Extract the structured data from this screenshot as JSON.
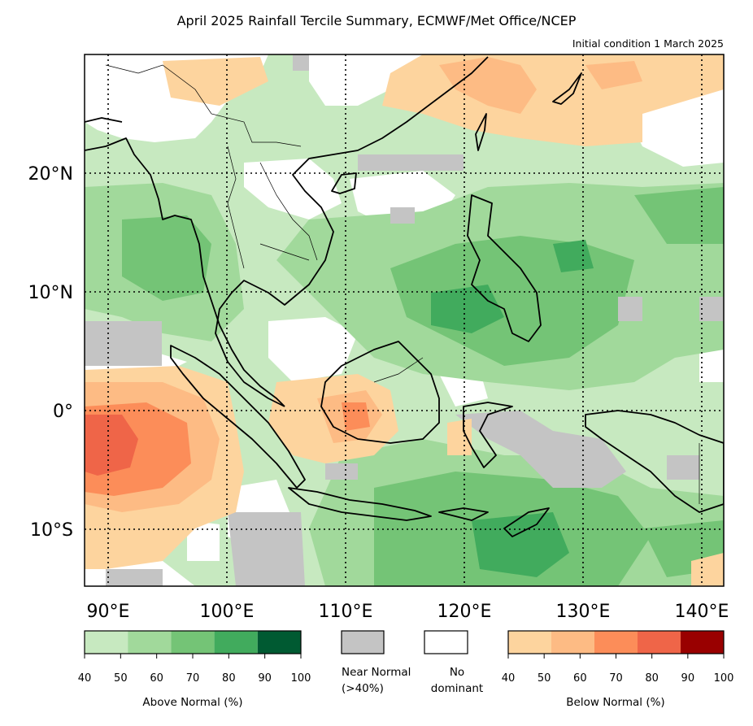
{
  "title": "April 2025 Rainfall Tercile Summary, ECMWF/Met Office/NCEP",
  "subtitle": "Initial condition 1 March 2025",
  "map": {
    "lat_labels": [
      "20°N",
      "10°N",
      "0°",
      "10°S"
    ],
    "lon_labels": [
      "90°E",
      "100°E",
      "110°E",
      "120°E",
      "130°E",
      "140°E"
    ]
  },
  "legend": {
    "above": {
      "title": "Above Normal (%)",
      "ticks": [
        "40",
        "50",
        "60",
        "70",
        "80",
        "90",
        "100"
      ],
      "colors": [
        "#c7e9c0",
        "#a1d99b",
        "#74c476",
        "#41ab5d",
        "#005a32"
      ]
    },
    "near": {
      "line1": "Near Normal",
      "line2": "(>40%)",
      "color": "#c4c4c4"
    },
    "none": {
      "line1": "No",
      "line2": "dominant",
      "color": "#ffffff"
    },
    "below": {
      "title": "Below Normal (%)",
      "ticks": [
        "40",
        "50",
        "60",
        "70",
        "80",
        "90",
        "100"
      ],
      "colors": [
        "#fdd49e",
        "#fdbb84",
        "#fc8d59",
        "#ef6548",
        "#990000"
      ]
    }
  }
}
